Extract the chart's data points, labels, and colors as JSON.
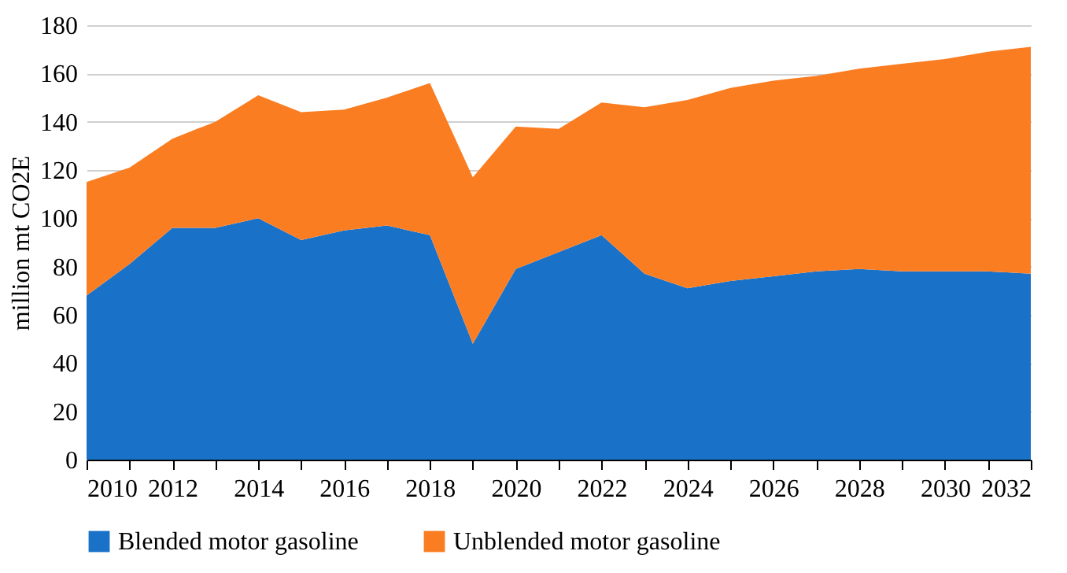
{
  "chart_data": {
    "type": "area",
    "stacked": true,
    "ylabel": "million mt CO2E",
    "x": [
      2010,
      2011,
      2012,
      2013,
      2014,
      2015,
      2016,
      2017,
      2018,
      2019,
      2020,
      2021,
      2022,
      2023,
      2024,
      2025,
      2026,
      2027,
      2028,
      2029,
      2030,
      2031,
      2032
    ],
    "series": [
      {
        "name": "Blended motor gasoline",
        "color": "#1a72c8",
        "values": [
          68,
          81,
          96,
          96,
          100,
          91,
          95,
          97,
          93,
          48,
          79,
          86,
          93,
          77,
          71,
          74,
          76,
          78,
          79,
          78,
          78,
          78,
          77
        ]
      },
      {
        "name": "Unblended motor gasoline",
        "color": "#fb7d22",
        "values": [
          47,
          40,
          37,
          44,
          51,
          53,
          50,
          53,
          63,
          69,
          59,
          51,
          55,
          69,
          78,
          80,
          81,
          81,
          83,
          86,
          88,
          91,
          94
        ]
      }
    ],
    "xlim": [
      2010,
      2032
    ],
    "xticks": [
      2010,
      {
        "value": 2011,
        "label": null
      },
      2012,
      {
        "value": 2013,
        "label": null
      },
      2014,
      {
        "value": 2015,
        "label": null
      },
      2016,
      {
        "value": 2017,
        "label": null
      },
      2018,
      {
        "value": 2019,
        "label": null
      },
      2020,
      {
        "value": 2021,
        "label": null
      },
      2022,
      {
        "value": 2023,
        "label": null
      },
      2024,
      {
        "value": 2025,
        "label": null
      },
      2026,
      {
        "value": 2027,
        "label": null
      },
      2028,
      {
        "value": 2029,
        "label": null
      },
      2030,
      {
        "value": 2031,
        "label": null
      },
      2032
    ],
    "ylim": [
      0,
      180
    ],
    "yticks": [
      0,
      20,
      40,
      60,
      80,
      100,
      120,
      140,
      160,
      180
    ],
    "grid": "y",
    "legend": "bottom"
  }
}
